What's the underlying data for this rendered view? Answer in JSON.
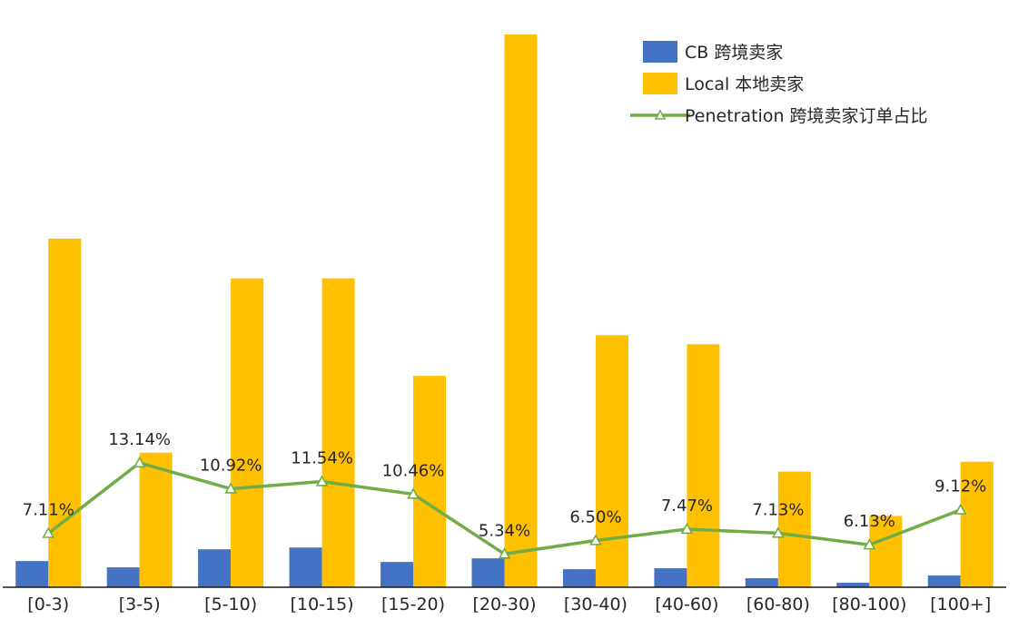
{
  "chart_data": {
    "type": "bar",
    "categories": [
      "[0-3)",
      "[3-5)",
      "[5-10)",
      "[10-15)",
      "[15-20)",
      "[20-30)",
      "[30-40)",
      "[40-60)",
      "[60-80)",
      "[80-100)",
      "[100+]"
    ],
    "series": [
      {
        "name": "CB 跨境卖家",
        "kind": "bar",
        "color": "#4472C4",
        "values": [
          29,
          22,
          42,
          44,
          28,
          32,
          20,
          21,
          10,
          5,
          13
        ]
      },
      {
        "name": "Local 本地卖家",
        "kind": "bar",
        "color": "#FFC000",
        "values": [
          386,
          149,
          342,
          342,
          234,
          612,
          279,
          269,
          128,
          79,
          139
        ]
      },
      {
        "name": "Penetration 跨境卖家订单占比",
        "kind": "line",
        "color": "#70AD47",
        "marker": "triangle",
        "values": [
          7.11,
          13.14,
          10.92,
          11.54,
          10.46,
          5.34,
          6.5,
          7.47,
          7.13,
          6.13,
          9.12
        ],
        "labels": [
          "7.11%",
          "13.14%",
          "10.92%",
          "11.54%",
          "10.46%",
          "5.34%",
          "6.50%",
          "7.47%",
          "7.13%",
          "6.13%",
          "9.12%"
        ]
      }
    ],
    "ylim": [
      0,
      615
    ],
    "grid": false,
    "y_axis_visible": false,
    "legend_position": "top-right",
    "title": "",
    "xlabel": "",
    "ylabel": ""
  }
}
